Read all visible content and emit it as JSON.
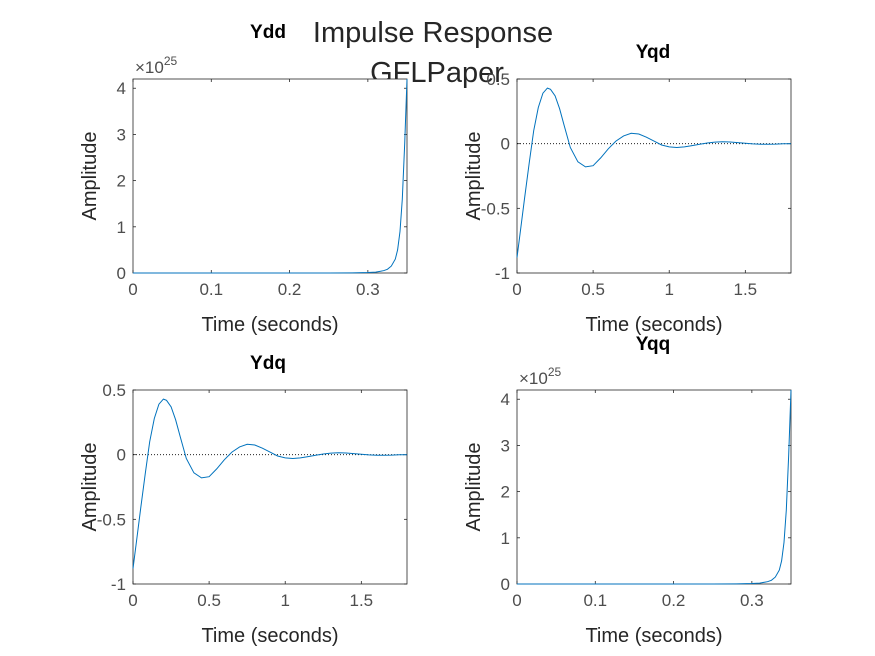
{
  "figure": {
    "title_line1": "Impulse Response",
    "title_line2": "GFLPaper"
  },
  "colors": {
    "line": "#0072BD",
    "zero_line": "#000000",
    "axes": "#262626",
    "ticks": "#4d4d4d"
  },
  "chart_data": [
    {
      "type": "line",
      "title": "Ydd",
      "xlabel": "Time (seconds)",
      "ylabel": "Amplitude",
      "xlim": [
        0,
        0.35
      ],
      "ylim": [
        0,
        4.2
      ],
      "xticks": [
        "0",
        "0.1",
        "0.2",
        "0.3"
      ],
      "yticks": [
        "0",
        "1",
        "2",
        "3",
        "4"
      ],
      "y_exponent": "×10",
      "y_exponent_power": "25",
      "zero_line": false,
      "series": [
        {
          "x": [
            0,
            0.05,
            0.1,
            0.15,
            0.2,
            0.25,
            0.28,
            0.3,
            0.31,
            0.32,
            0.325,
            0.33,
            0.335,
            0.338,
            0.341,
            0.344,
            0.347,
            0.35
          ],
          "y": [
            0,
            0,
            0,
            0,
            0,
            0,
            0.003,
            0.01,
            0.02,
            0.05,
            0.08,
            0.15,
            0.3,
            0.5,
            0.9,
            1.6,
            2.8,
            4.2
          ]
        }
      ]
    },
    {
      "type": "line",
      "title": "Yqd",
      "xlabel": "Time (seconds)",
      "ylabel": "Amplitude",
      "xlim": [
        0,
        1.8
      ],
      "ylim": [
        -1,
        0.5
      ],
      "xticks": [
        "0",
        "0.5",
        "1",
        "1.5"
      ],
      "yticks": [
        "-1",
        "-0.5",
        "0",
        "0.5"
      ],
      "zero_line": true,
      "series": [
        {
          "x": [
            0,
            0.02,
            0.05,
            0.08,
            0.11,
            0.14,
            0.17,
            0.2,
            0.22,
            0.25,
            0.28,
            0.31,
            0.35,
            0.4,
            0.45,
            0.5,
            0.55,
            0.6,
            0.65,
            0.7,
            0.75,
            0.8,
            0.85,
            0.9,
            0.95,
            1.0,
            1.05,
            1.1,
            1.15,
            1.2,
            1.25,
            1.3,
            1.35,
            1.4,
            1.45,
            1.5,
            1.55,
            1.6,
            1.65,
            1.7,
            1.75,
            1.8
          ],
          "y": [
            -0.88,
            -0.7,
            -0.42,
            -0.15,
            0.1,
            0.28,
            0.39,
            0.43,
            0.42,
            0.37,
            0.27,
            0.14,
            -0.03,
            -0.14,
            -0.18,
            -0.17,
            -0.11,
            -0.04,
            0.02,
            0.06,
            0.08,
            0.075,
            0.05,
            0.02,
            -0.01,
            -0.025,
            -0.03,
            -0.025,
            -0.015,
            -0.005,
            0.005,
            0.012,
            0.015,
            0.013,
            0.008,
            0.003,
            -0.002,
            -0.004,
            -0.004,
            -0.003,
            -0.001,
            0.0
          ]
        }
      ]
    },
    {
      "type": "line",
      "title": "Ydq",
      "xlabel": "Time (seconds)",
      "ylabel": "Amplitude",
      "xlim": [
        0,
        1.8
      ],
      "ylim": [
        -1,
        0.5
      ],
      "xticks": [
        "0",
        "0.5",
        "1",
        "1.5"
      ],
      "yticks": [
        "-1",
        "-0.5",
        "0",
        "0.5"
      ],
      "zero_line": true,
      "series": [
        {
          "x": [
            0,
            0.02,
            0.05,
            0.08,
            0.11,
            0.14,
            0.17,
            0.2,
            0.22,
            0.25,
            0.28,
            0.31,
            0.35,
            0.4,
            0.45,
            0.5,
            0.55,
            0.6,
            0.65,
            0.7,
            0.75,
            0.8,
            0.85,
            0.9,
            0.95,
            1.0,
            1.05,
            1.1,
            1.15,
            1.2,
            1.25,
            1.3,
            1.35,
            1.4,
            1.45,
            1.5,
            1.55,
            1.6,
            1.65,
            1.7,
            1.75,
            1.8
          ],
          "y": [
            -0.88,
            -0.7,
            -0.42,
            -0.15,
            0.1,
            0.28,
            0.39,
            0.43,
            0.42,
            0.37,
            0.27,
            0.14,
            -0.03,
            -0.14,
            -0.18,
            -0.17,
            -0.11,
            -0.04,
            0.02,
            0.06,
            0.08,
            0.075,
            0.05,
            0.02,
            -0.01,
            -0.025,
            -0.03,
            -0.025,
            -0.015,
            -0.005,
            0.005,
            0.012,
            0.015,
            0.013,
            0.008,
            0.003,
            -0.002,
            -0.004,
            -0.004,
            -0.003,
            -0.001,
            0.0
          ]
        }
      ]
    },
    {
      "type": "line",
      "title": "Yqq",
      "xlabel": "Time (seconds)",
      "ylabel": "Amplitude",
      "xlim": [
        0,
        0.35
      ],
      "ylim": [
        0,
        4.2
      ],
      "xticks": [
        "0",
        "0.1",
        "0.2",
        "0.3"
      ],
      "yticks": [
        "0",
        "1",
        "2",
        "3",
        "4"
      ],
      "y_exponent": "×10",
      "y_exponent_power": "25",
      "zero_line": false,
      "series": [
        {
          "x": [
            0,
            0.05,
            0.1,
            0.15,
            0.2,
            0.25,
            0.28,
            0.3,
            0.31,
            0.32,
            0.325,
            0.33,
            0.335,
            0.338,
            0.341,
            0.344,
            0.347,
            0.35
          ],
          "y": [
            0,
            0,
            0,
            0,
            0,
            0,
            0.003,
            0.01,
            0.02,
            0.05,
            0.08,
            0.15,
            0.3,
            0.5,
            0.9,
            1.6,
            2.8,
            4.2
          ]
        }
      ]
    }
  ]
}
